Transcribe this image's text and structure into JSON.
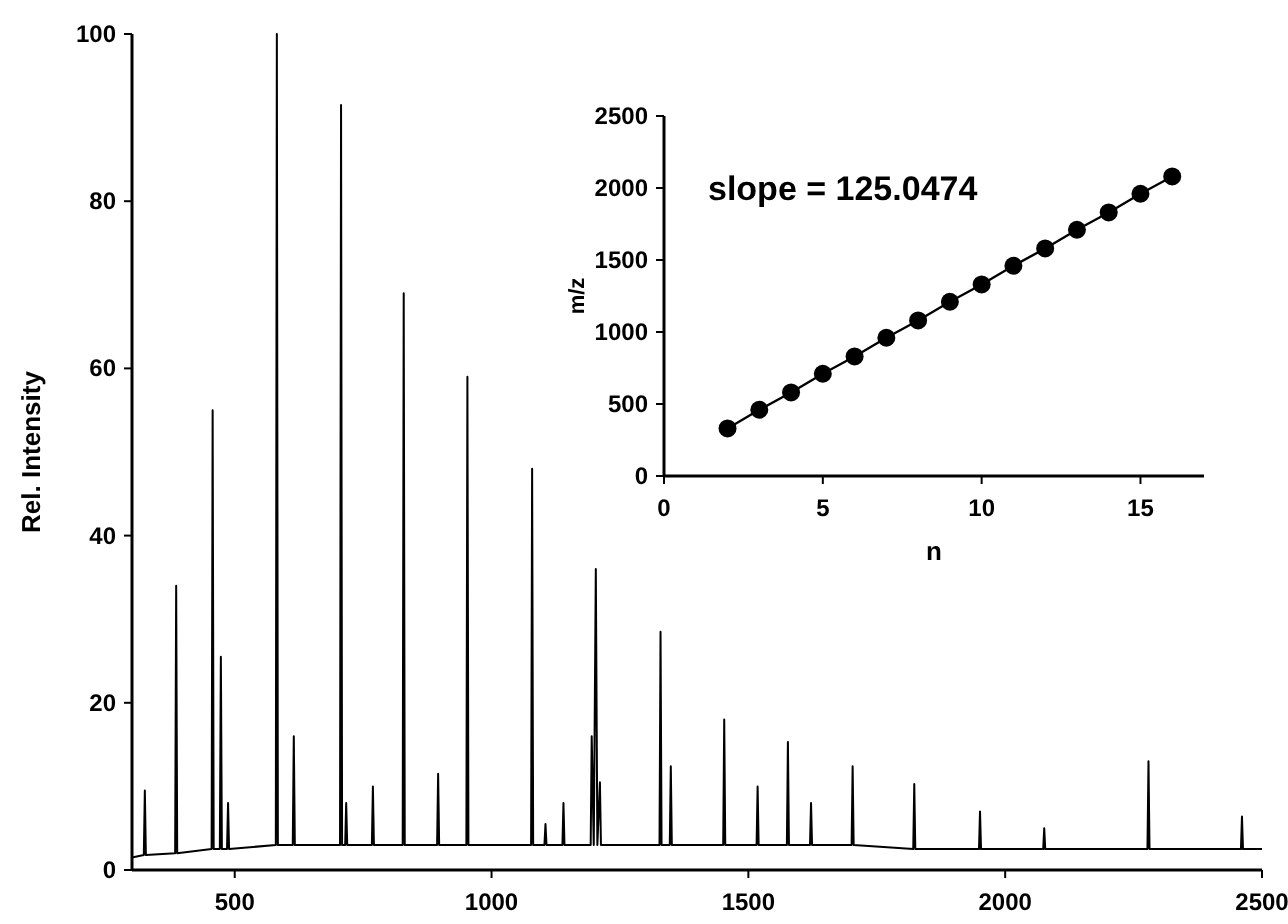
{
  "chart_data": [
    {
      "type": "line",
      "ylabel": "Rel. Intensity",
      "xlim": [
        300,
        2500
      ],
      "ylim": [
        0,
        100
      ],
      "xticks": [
        500,
        1000,
        1500,
        2000,
        2500
      ],
      "yticks": [
        0,
        20,
        40,
        60,
        80,
        100
      ],
      "grid": false,
      "marker": "none",
      "line_style": "solid",
      "series": [
        {
          "color": "#000000",
          "x": [
            300,
            323,
            325,
            327,
            384,
            386,
            388,
            455,
            457,
            459,
            471,
            473,
            475,
            485,
            487,
            489,
            580,
            582,
            584,
            613,
            615,
            617,
            705,
            707,
            709,
            715,
            717,
            719,
            767,
            769,
            771,
            827,
            829,
            831,
            894,
            896,
            898,
            951,
            953,
            955,
            1077,
            1079,
            1081,
            1103,
            1105,
            1107,
            1138,
            1140,
            1142,
            1193,
            1195,
            1199,
            1203,
            1206,
            1211,
            1213,
            1327,
            1329,
            1331,
            1347,
            1349,
            1351,
            1451,
            1453,
            1455,
            1516,
            1518,
            1520,
            1575,
            1577,
            1579,
            1620,
            1622,
            1624,
            1701,
            1703,
            1705,
            1821,
            1823,
            1825,
            1949,
            1951,
            1953,
            2074,
            2076,
            2078,
            2277,
            2279,
            2281,
            2459,
            2461,
            2463,
            2500
          ],
          "values": [
            1.5,
            1.8,
            9.5,
            1.8,
            2,
            34,
            2,
            2.5,
            55,
            2.5,
            2.5,
            25.5,
            2.5,
            2.5,
            8,
            2.5,
            3,
            100,
            3,
            3,
            16,
            3,
            3,
            91.5,
            3,
            3,
            8,
            3,
            3,
            10,
            3,
            3,
            69,
            3,
            3,
            11.5,
            3,
            3,
            59,
            3,
            3,
            48,
            3,
            3,
            5.5,
            3,
            3,
            8,
            3,
            3,
            16,
            3,
            36,
            3,
            10.5,
            3,
            3,
            28.5,
            3,
            3,
            12.4,
            3,
            3,
            18,
            3,
            3,
            10,
            3,
            3,
            15.3,
            3,
            3,
            8,
            3,
            3,
            12.4,
            3,
            2.5,
            10.3,
            2.5,
            2.5,
            7,
            2.5,
            2.5,
            5,
            2.5,
            2.5,
            13,
            2.5,
            2.5,
            6.4,
            2.5,
            2.5
          ]
        }
      ]
    },
    {
      "type": "line",
      "xlabel": "n",
      "ylabel": "m/z",
      "xlim": [
        0,
        17
      ],
      "ylim": [
        0,
        2500
      ],
      "xticks": [
        0,
        5,
        10,
        15
      ],
      "yticks": [
        0,
        500,
        1000,
        1500,
        2000,
        2500
      ],
      "grid": false,
      "marker": "circle",
      "line_style": "solid",
      "annotations": [
        "slope = 125.0474"
      ],
      "series": [
        {
          "color": "#000000",
          "x": [
            2,
            3,
            4,
            5,
            6,
            7,
            8,
            9,
            10,
            11,
            12,
            13,
            14,
            15,
            16
          ],
          "values": [
            330,
            460,
            580,
            710,
            830,
            960,
            1080,
            1210,
            1330,
            1460,
            1580,
            1710,
            1830,
            1960,
            2080
          ]
        }
      ]
    }
  ]
}
